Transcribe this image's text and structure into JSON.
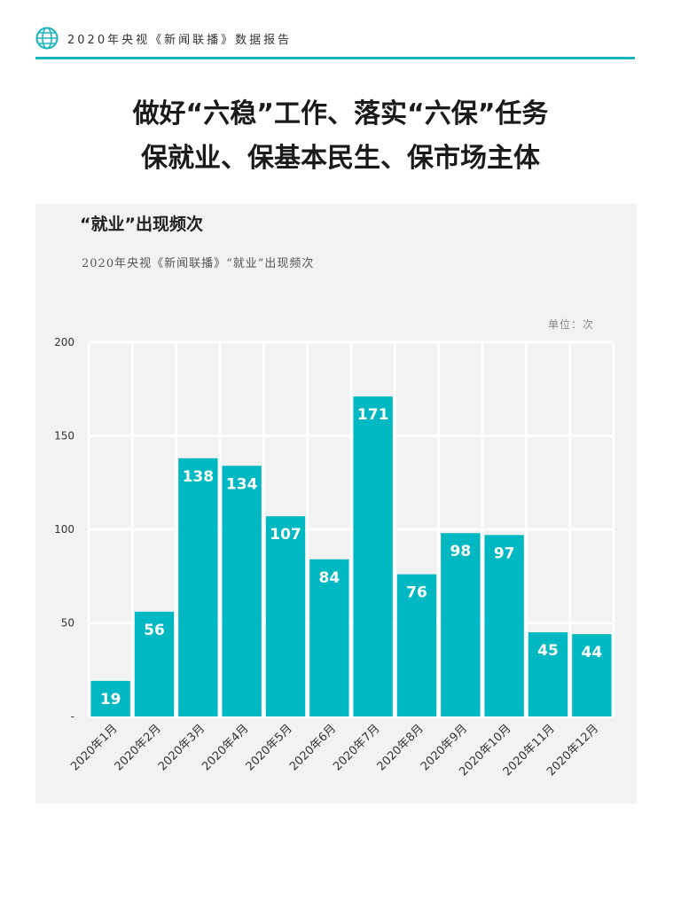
{
  "header": {
    "text": "2020年央视《新闻联播》数据报告",
    "icon": "globe-icon",
    "accent_color": "#1cb5bd"
  },
  "headline": {
    "line1": "做好“六稳”工作、落实“六保”任务",
    "line2": "保就业、保基本民生、保市场主体"
  },
  "chart_data": {
    "type": "bar",
    "title": "“就业”出现频次",
    "subtitle": "2020年央视《新闻联播》“就业”出现频次",
    "unit": "单位：次",
    "categories": [
      "2020年1月",
      "2020年2月",
      "2020年3月",
      "2020年4月",
      "2020年5月",
      "2020年6月",
      "2020年7月",
      "2020年8月",
      "2020年9月",
      "2020年10月",
      "2020年11月",
      "2020年12月"
    ],
    "values": [
      19,
      56,
      138,
      134,
      107,
      84,
      171,
      76,
      98,
      97,
      45,
      44
    ],
    "ylim": [
      0,
      200
    ],
    "yticks": [
      0,
      50,
      100,
      150,
      200
    ],
    "ytick_labels": [
      "-",
      "50",
      "100",
      "150",
      "200"
    ],
    "grid": true,
    "bar_color": "#00b8c2",
    "data_labels": true
  }
}
